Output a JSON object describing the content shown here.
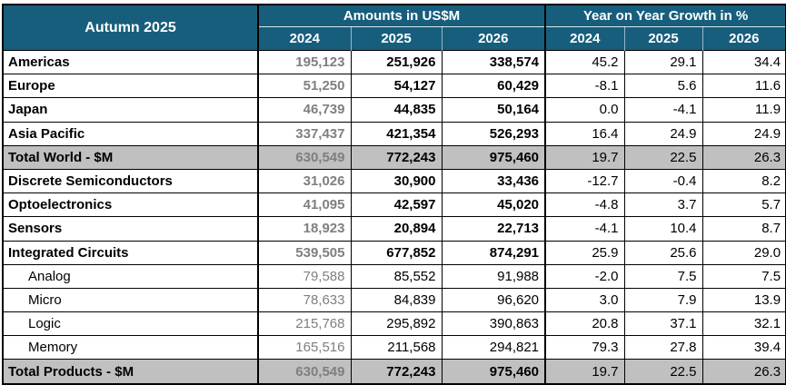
{
  "colors": {
    "header_bg": "#175E7D",
    "header_text": "#FFFFFF",
    "total_row_bg": "#C0C0C0",
    "muted_value_text": "#7F7F7F",
    "border": "#000000"
  },
  "chart_data": {
    "type": "table",
    "title": "Autumn 2025",
    "column_groups": [
      "Amounts in US$M",
      "Year on Year Growth in %"
    ],
    "years": [
      "2024",
      "2025",
      "2026"
    ],
    "rows": [
      {
        "label": "Americas",
        "row_type": "main",
        "amounts_usdm": [
          "195,123",
          "251,926",
          "338,574"
        ],
        "growth_pct": [
          "45.2",
          "29.1",
          "34.4"
        ]
      },
      {
        "label": "Europe",
        "row_type": "main",
        "amounts_usdm": [
          "51,250",
          "54,127",
          "60,429"
        ],
        "growth_pct": [
          "-8.1",
          "5.6",
          "11.6"
        ]
      },
      {
        "label": "Japan",
        "row_type": "main",
        "amounts_usdm": [
          "46,739",
          "44,835",
          "50,164"
        ],
        "growth_pct": [
          "0.0",
          "-4.1",
          "11.9"
        ]
      },
      {
        "label": "Asia Pacific",
        "row_type": "main",
        "amounts_usdm": [
          "337,437",
          "421,354",
          "526,293"
        ],
        "growth_pct": [
          "16.4",
          "24.9",
          "24.9"
        ]
      },
      {
        "label": "Total World - $M",
        "row_type": "total",
        "amounts_usdm": [
          "630,549",
          "772,243",
          "975,460"
        ],
        "growth_pct": [
          "19.7",
          "22.5",
          "26.3"
        ]
      },
      {
        "label": "Discrete Semiconductors",
        "row_type": "main",
        "amounts_usdm": [
          "31,026",
          "30,900",
          "33,436"
        ],
        "growth_pct": [
          "-12.7",
          "-0.4",
          "8.2"
        ]
      },
      {
        "label": "Optoelectronics",
        "row_type": "main",
        "amounts_usdm": [
          "41,095",
          "42,597",
          "45,020"
        ],
        "growth_pct": [
          "-4.8",
          "3.7",
          "5.7"
        ]
      },
      {
        "label": "Sensors",
        "row_type": "main",
        "amounts_usdm": [
          "18,923",
          "20,894",
          "22,713"
        ],
        "growth_pct": [
          "-4.1",
          "10.4",
          "8.7"
        ]
      },
      {
        "label": "Integrated Circuits",
        "row_type": "main",
        "amounts_usdm": [
          "539,505",
          "677,852",
          "874,291"
        ],
        "growth_pct": [
          "25.9",
          "25.6",
          "29.0"
        ]
      },
      {
        "label": "Analog",
        "row_type": "sub",
        "amounts_usdm": [
          "79,588",
          "85,552",
          "91,988"
        ],
        "growth_pct": [
          "-2.0",
          "7.5",
          "7.5"
        ]
      },
      {
        "label": "Micro",
        "row_type": "sub",
        "amounts_usdm": [
          "78,633",
          "84,839",
          "96,620"
        ],
        "growth_pct": [
          "3.0",
          "7.9",
          "13.9"
        ]
      },
      {
        "label": "Logic",
        "row_type": "sub",
        "amounts_usdm": [
          "215,768",
          "295,892",
          "390,863"
        ],
        "growth_pct": [
          "20.8",
          "37.1",
          "32.1"
        ]
      },
      {
        "label": "Memory",
        "row_type": "sub",
        "amounts_usdm": [
          "165,516",
          "211,568",
          "294,821"
        ],
        "growth_pct": [
          "79.3",
          "27.8",
          "39.4"
        ]
      },
      {
        "label": "Total Products - $M",
        "row_type": "total",
        "amounts_usdm": [
          "630,549",
          "772,243",
          "975,460"
        ],
        "growth_pct": [
          "19.7",
          "22.5",
          "26.3"
        ]
      }
    ]
  }
}
